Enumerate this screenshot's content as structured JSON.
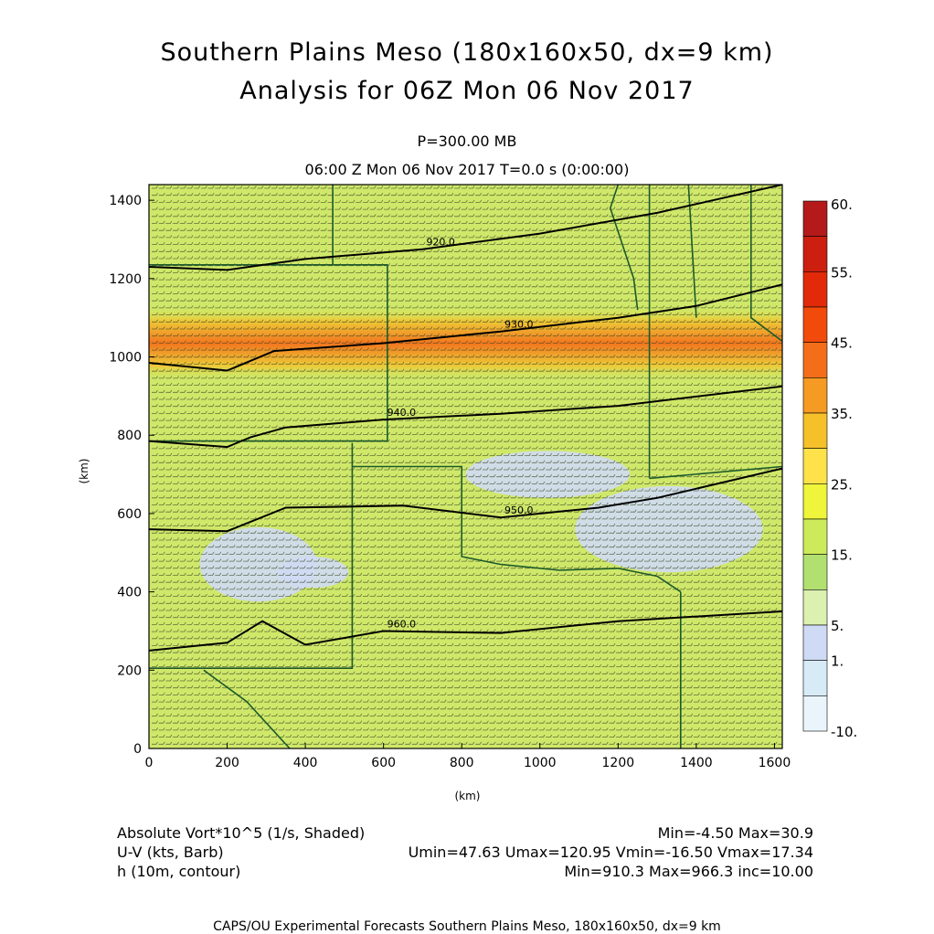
{
  "header": {
    "title_line1": "Southern Plains Meso (180x160x50, dx=9 km)",
    "title_line2": "Analysis for 06Z Mon 06 Nov 2017",
    "level": "P=300.00 MB",
    "time": "06:00 Z Mon 06 Nov 2017    T=0.0 s (0:00:00)"
  },
  "footer": {
    "vort_label": "Absolute Vort*10^5 (1/s, Shaded)",
    "vort_range": "Min=-4.50 Max=30.9",
    "wind_label": "U-V (kts, Barb)",
    "wind_range": "Umin=47.63 Umax=120.95 Vmin=-16.50 Vmax=17.34",
    "h_label": "h (10m, contour)",
    "h_range": "Min=910.3 Max=966.3 inc=10.00",
    "credit": "CAPS/OU Experimental Forecasts  Southern Plains Meso, 180x160x50, dx=9 km"
  },
  "chart_data": {
    "type": "heatmap",
    "xlabel": "(km)",
    "ylabel": "(km)",
    "xlim": [
      0,
      1620
    ],
    "ylim": [
      0,
      1440
    ],
    "x_ticks": [
      0,
      200,
      400,
      600,
      800,
      1000,
      1200,
      1400,
      1600
    ],
    "y_ticks": [
      0,
      200,
      400,
      600,
      800,
      1000,
      1200,
      1400
    ],
    "colorbar": {
      "labels": [
        "60.",
        "55.",
        "45.",
        "35.",
        "25.",
        "15.",
        "5.",
        "1.",
        "-10."
      ],
      "colors": [
        "#b41a1a",
        "#cc1f10",
        "#e22a0a",
        "#f24a0a",
        "#f46e1a",
        "#f59a22",
        "#f5c02a",
        "#ffe14a",
        "#eef53a",
        "#cdea5a",
        "#b2e070",
        "#dcf0b0",
        "#cfdaf4",
        "#d7ebf7",
        "#eaf5fb"
      ]
    },
    "contours": [
      {
        "label": "920.0",
        "points": [
          [
            0,
            1230
          ],
          [
            200,
            1222
          ],
          [
            400,
            1250
          ],
          [
            700,
            1275
          ],
          [
            1000,
            1315
          ],
          [
            1300,
            1368
          ],
          [
            1620,
            1440
          ]
        ]
      },
      {
        "label": "930.0",
        "points": [
          [
            0,
            985
          ],
          [
            200,
            965
          ],
          [
            320,
            1015
          ],
          [
            600,
            1035
          ],
          [
            900,
            1065
          ],
          [
            1200,
            1100
          ],
          [
            1400,
            1130
          ],
          [
            1620,
            1185
          ]
        ]
      },
      {
        "label": "940.0",
        "points": [
          [
            0,
            785
          ],
          [
            200,
            770
          ],
          [
            260,
            795
          ],
          [
            350,
            820
          ],
          [
            600,
            840
          ],
          [
            900,
            855
          ],
          [
            1200,
            875
          ],
          [
            1620,
            925
          ]
        ]
      },
      {
        "label": "950.0",
        "points": [
          [
            0,
            560
          ],
          [
            200,
            555
          ],
          [
            350,
            615
          ],
          [
            650,
            620
          ],
          [
            900,
            590
          ],
          [
            1150,
            615
          ],
          [
            1300,
            640
          ],
          [
            1620,
            715
          ]
        ]
      },
      {
        "label": "960.0",
        "points": [
          [
            0,
            250
          ],
          [
            200,
            270
          ],
          [
            290,
            325
          ],
          [
            400,
            265
          ],
          [
            600,
            300
          ],
          [
            900,
            295
          ],
          [
            1200,
            325
          ],
          [
            1620,
            350
          ]
        ]
      }
    ],
    "vorticity_bands": [
      {
        "name": "max-band",
        "value": 30.9,
        "y": [
          940,
          1130
        ]
      },
      {
        "name": "min-patch",
        "value": -4.5,
        "y": [
          300,
          560
        ]
      }
    ],
    "wind_summary": {
      "u_range": [
        47.63,
        120.95
      ],
      "v_range": [
        -16.5,
        17.34
      ]
    }
  }
}
